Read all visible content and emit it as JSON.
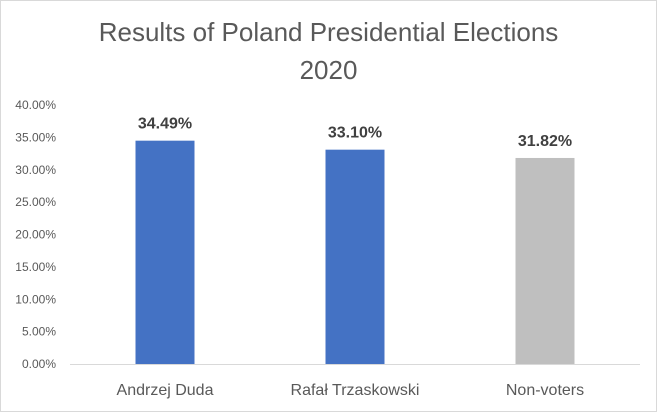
{
  "chart_data": {
    "type": "bar",
    "title_line1": "Results of Poland Presidential Elections",
    "title_line2": "2020",
    "categories": [
      "Andrzej Duda",
      "Rafał Trzaskowski",
      "Non-voters"
    ],
    "values": [
      34.49,
      33.1,
      31.82
    ],
    "data_labels": [
      "34.49%",
      "33.10%",
      "31.82%"
    ],
    "colors": [
      "#4472c4",
      "#4472c4",
      "#bfbfbf"
    ],
    "ylim": [
      0,
      40
    ],
    "yticks": [
      0,
      5,
      10,
      15,
      20,
      25,
      30,
      35,
      40
    ],
    "ytick_labels": [
      "0.00%",
      "5.00%",
      "10.00%",
      "15.00%",
      "20.00%",
      "25.00%",
      "30.00%",
      "35.00%",
      "40.00%"
    ],
    "grid": false,
    "xlabel": "",
    "ylabel": ""
  }
}
